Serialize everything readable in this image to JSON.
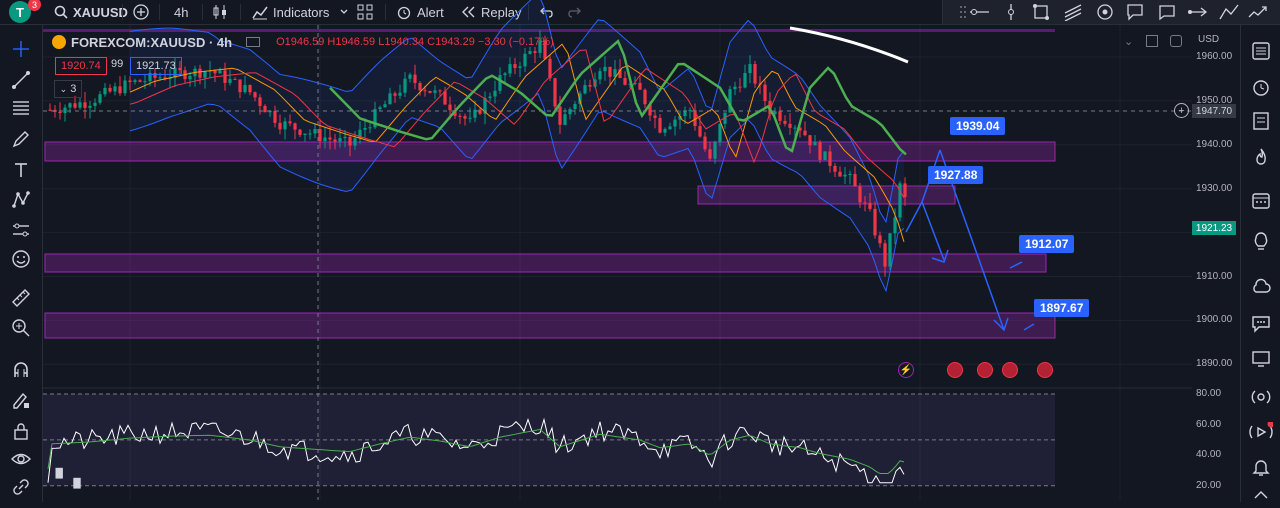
{
  "toolbar": {
    "avatar_letter": "T",
    "notification_count": "3",
    "symbol": "XAUUSD",
    "interval": "4h",
    "indicators_label": "Indicators",
    "alert_label": "Alert",
    "replay_label": "Replay"
  },
  "legend": {
    "symbol_line": "FOREXCOM:XAUUSD · 4h",
    "ohlc": "O1946.59 H1946.59 L1940.34 C1943.29 −3.30 (−0.17%)",
    "bb_values": [
      "1920.74",
      "99",
      "1921.73"
    ],
    "collapse_count": "3"
  },
  "price_axis": {
    "currency": "USD",
    "ticks": [
      "1960.00",
      "1950.00",
      "1940.00",
      "1930.00",
      "1920.00",
      "1910.00",
      "1900.00",
      "1890.00"
    ],
    "crosshair_price": "1947.70",
    "last_price": "1921.23"
  },
  "rsi_axis": {
    "ticks": [
      "80.00",
      "60.00",
      "40.00",
      "20.00"
    ]
  },
  "targets": [
    "1939.04",
    "1927.88",
    "1912.07",
    "1897.67"
  ],
  "colors": {
    "background": "#131722",
    "up": "#089981",
    "down": "#f23645",
    "zone": "#9c27b0",
    "accent": "#2962ff"
  }
}
